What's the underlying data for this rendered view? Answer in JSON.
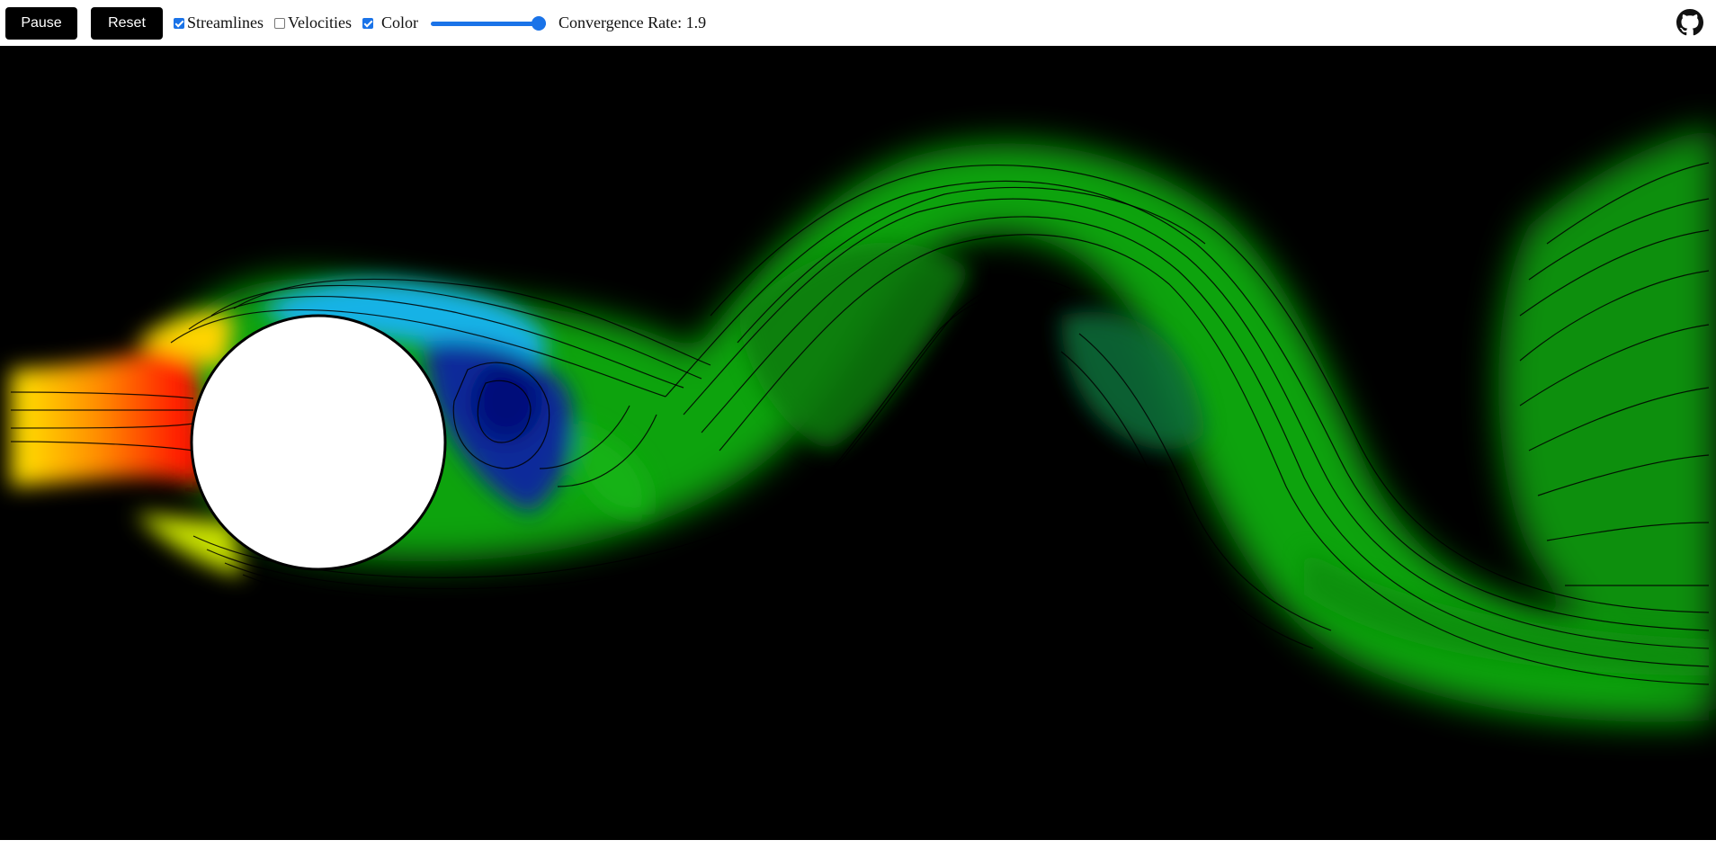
{
  "toolbar": {
    "pause_label": "Pause",
    "reset_label": "Reset",
    "streamlines_label": "Streamlines",
    "streamlines_checked": true,
    "velocities_label": "Velocities",
    "velocities_checked": false,
    "color_label": "Color",
    "color_checked": true,
    "convergence_label": "Convergence Rate:",
    "convergence_value": "1.9",
    "convergence_fraction": 1.0
  },
  "header": {
    "github_icon": "github-icon"
  },
  "colors": {
    "accent": "#1a73e8",
    "button_bg": "#000000",
    "canvas_bg": "#000000",
    "obstacle": "#ffffff"
  }
}
